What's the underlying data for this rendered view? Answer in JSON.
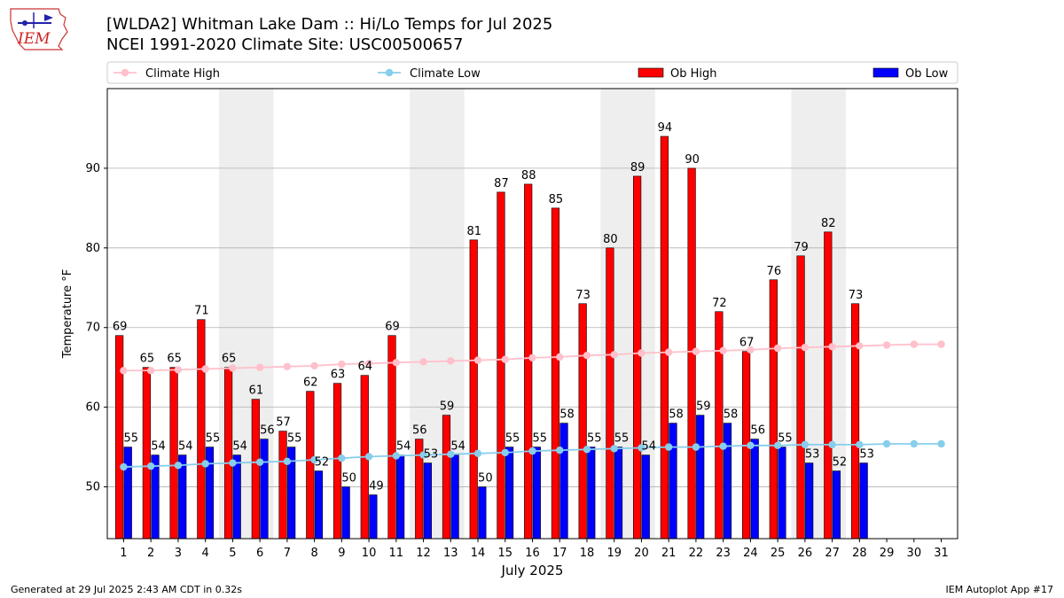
{
  "header": {
    "title_line1": "[WLDA2] Whitman Lake Dam :: Hi/Lo Temps for Jul 2025",
    "title_line2": "NCEI 1991-2020 Climate Site: USC00500657",
    "logo_text": "IEM"
  },
  "footer": {
    "generated": "Generated at 29 Jul 2025 2:43 AM CDT in 0.32s",
    "app": "IEM Autoplot App #17"
  },
  "colors": {
    "ob_high": "#ff0000",
    "ob_low": "#0000ff",
    "climate_high": "#ffc0cb",
    "climate_low": "#87ceeb",
    "weekend_band": "#eeeeee",
    "grid": "#b0b0b0"
  },
  "chart_data": {
    "type": "bar",
    "xlabel": "July 2025",
    "ylabel": "Temperature °F",
    "ylim": [
      43.5,
      100
    ],
    "yticks": [
      50,
      60,
      70,
      80,
      90
    ],
    "grid": "y",
    "legend_position": "top",
    "x": [
      1,
      2,
      3,
      4,
      5,
      6,
      7,
      8,
      9,
      10,
      11,
      12,
      13,
      14,
      15,
      16,
      17,
      18,
      19,
      20,
      21,
      22,
      23,
      24,
      25,
      26,
      27,
      28,
      29,
      30,
      31
    ],
    "shaded_days": [
      5,
      6,
      12,
      13,
      19,
      20,
      26,
      27
    ],
    "series": [
      {
        "name": "Climate High",
        "kind": "line",
        "values": [
          64.6,
          64.6,
          64.7,
          64.8,
          64.9,
          65.0,
          65.1,
          65.2,
          65.4,
          65.5,
          65.6,
          65.7,
          65.8,
          65.9,
          66.0,
          66.2,
          66.3,
          66.5,
          66.6,
          66.8,
          66.9,
          67.0,
          67.1,
          67.2,
          67.4,
          67.5,
          67.6,
          67.7,
          67.8,
          67.9,
          67.9
        ]
      },
      {
        "name": "Climate Low",
        "kind": "line",
        "values": [
          52.5,
          52.6,
          52.7,
          52.9,
          53.0,
          53.1,
          53.2,
          53.4,
          53.6,
          53.8,
          53.9,
          54.0,
          54.1,
          54.2,
          54.3,
          54.5,
          54.6,
          54.7,
          54.8,
          54.9,
          55.0,
          55.0,
          55.1,
          55.2,
          55.2,
          55.3,
          55.3,
          55.3,
          55.4,
          55.4,
          55.4
        ]
      },
      {
        "name": "Ob High",
        "kind": "bar",
        "values": [
          69,
          65,
          65,
          71,
          65,
          61,
          57,
          62,
          63,
          64,
          69,
          56,
          59,
          81,
          87,
          88,
          85,
          73,
          80,
          89,
          94,
          90,
          72,
          67,
          76,
          79,
          82,
          73,
          null,
          null,
          null
        ]
      },
      {
        "name": "Ob Low",
        "kind": "bar",
        "values": [
          55,
          54,
          54,
          55,
          54,
          56,
          55,
          52,
          50,
          49,
          54,
          53,
          54,
          50,
          55,
          55,
          58,
          55,
          55,
          54,
          58,
          59,
          58,
          56,
          55,
          53,
          52,
          53,
          null,
          null,
          null
        ]
      }
    ]
  }
}
